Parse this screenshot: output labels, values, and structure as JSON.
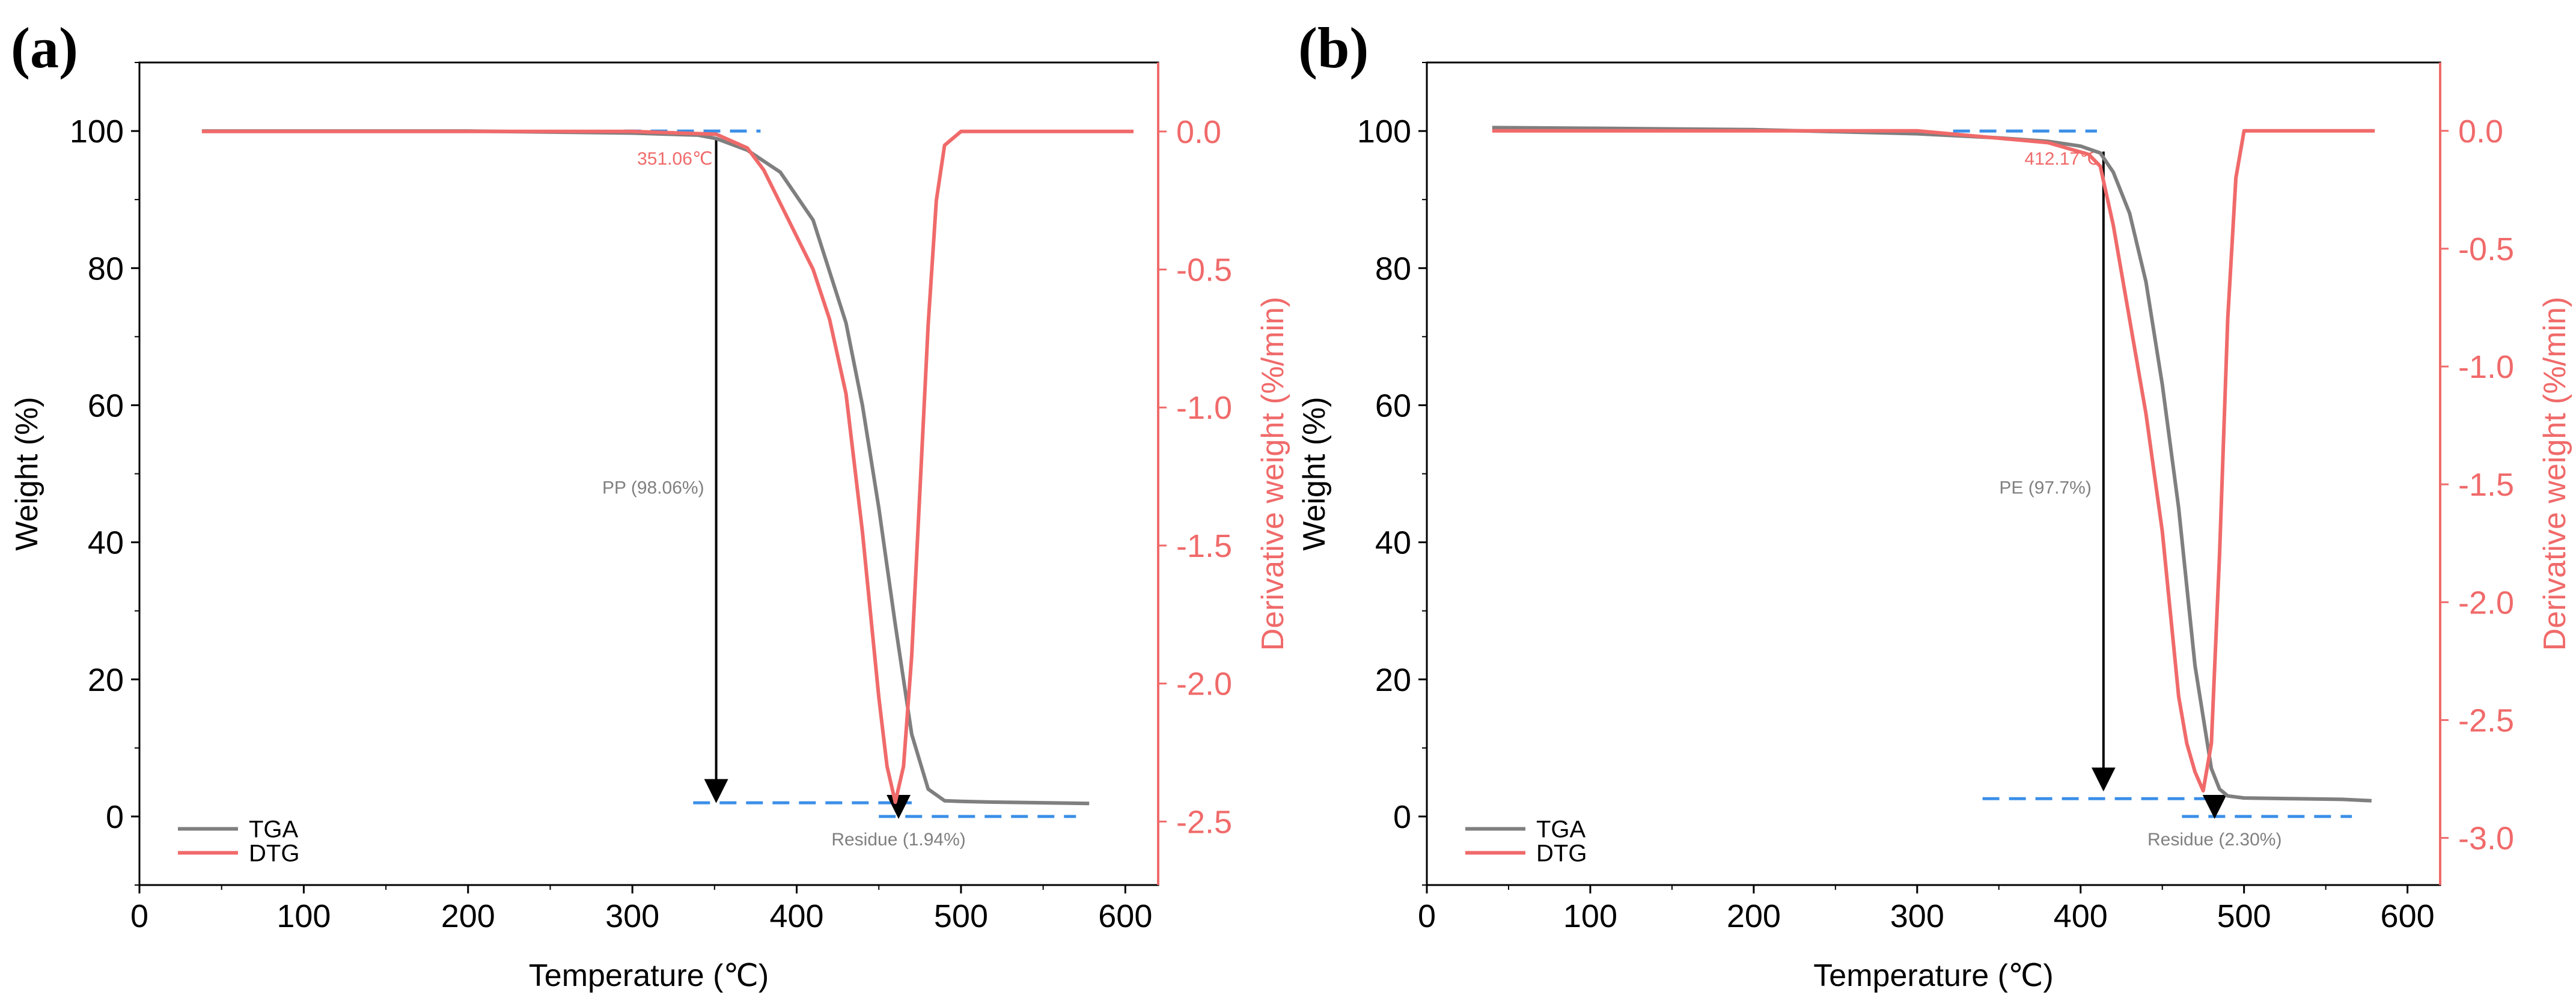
{
  "colors": {
    "tga": "#7f7f7f",
    "dtg": "#f06a6a",
    "dashed": "#3b8fe8",
    "arrow": "#000000",
    "axis": "#000000"
  },
  "chart_data": [
    {
      "panel_label": "(a)",
      "type": "line",
      "xlabel": "Temperature (℃)",
      "ylabel": "Weight (%)",
      "y2label": "Derivative weight (%/min)",
      "xlim": [
        0,
        620
      ],
      "ylim": [
        -10,
        110
      ],
      "y2lim": [
        -2.73,
        0.25
      ],
      "xticks": [
        "0",
        "100",
        "200",
        "300",
        "400",
        "500",
        "600"
      ],
      "xtick_values": [
        0,
        100,
        200,
        300,
        400,
        500,
        600
      ],
      "yticks": [
        "0",
        "20",
        "40",
        "60",
        "80",
        "100"
      ],
      "ytick_values": [
        0,
        20,
        40,
        60,
        80,
        100
      ],
      "y2ticks": [
        "0.0",
        "-0.5",
        "-1.0",
        "-1.5",
        "-2.0",
        "-2.5"
      ],
      "y2tick_values": [
        0,
        -0.5,
        -1.0,
        -1.5,
        -2.0,
        -2.5
      ],
      "legend": [
        "TGA",
        "DTG"
      ],
      "legend_position": "bottom-left",
      "series": [
        {
          "name": "TGA",
          "axis": "left",
          "x": [
            38,
            100,
            200,
            300,
            340,
            351,
            370,
            390,
            410,
            430,
            440,
            450,
            460,
            470,
            480,
            490,
            500,
            520,
            550,
            578
          ],
          "values": [
            100,
            100,
            100,
            99.7,
            99.4,
            98.9,
            97.2,
            94,
            87,
            72,
            60,
            45,
            28,
            12,
            4,
            2.3,
            2.2,
            2.1,
            2.0,
            1.9
          ]
        },
        {
          "name": "DTG",
          "axis": "right",
          "x": [
            38,
            100,
            200,
            300,
            351,
            370,
            380,
            390,
            400,
            410,
            420,
            430,
            440,
            450,
            455,
            460,
            465,
            470,
            475,
            480,
            485,
            490,
            500,
            550,
            605
          ],
          "values": [
            0,
            0,
            0,
            0,
            -0.01,
            -0.06,
            -0.14,
            -0.26,
            -0.38,
            -0.5,
            -0.68,
            -0.95,
            -1.45,
            -2.05,
            -2.3,
            -2.43,
            -2.3,
            -1.9,
            -1.3,
            -0.7,
            -0.25,
            -0.05,
            0,
            0,
            0
          ]
        }
      ],
      "annotations": {
        "onset_label": "351.06℃",
        "onset_temperature": 351.06,
        "loss_label": "PP (98.06%)",
        "residue_label": "Residue (1.94%)",
        "upper_dash_x": [
          295,
          378
        ],
        "upper_dash_y": 100,
        "lower_dash_x": [
          337,
          470
        ],
        "lower_dash_y": 2,
        "residue_dash_x": [
          450,
          570
        ],
        "residue_dash_y": 0,
        "arrow_x": 351,
        "arrow_from": 98.7,
        "arrow_to": 2.3,
        "residue_arrow_x": 462
      }
    },
    {
      "panel_label": "(b)",
      "type": "line",
      "xlabel": "Temperature (℃)",
      "ylabel": "Weight (%)",
      "y2label": "Derivative weight (%/min)",
      "xlim": [
        0,
        620
      ],
      "ylim": [
        -10,
        110
      ],
      "y2lim": [
        -3.2,
        0.29
      ],
      "xticks": [
        "0",
        "100",
        "200",
        "300",
        "400",
        "500",
        "600"
      ],
      "xtick_values": [
        0,
        100,
        200,
        300,
        400,
        500,
        600
      ],
      "yticks": [
        "0",
        "20",
        "40",
        "60",
        "80",
        "100"
      ],
      "ytick_values": [
        0,
        20,
        40,
        60,
        80,
        100
      ],
      "y2ticks": [
        "0.0",
        "-0.5",
        "-1.0",
        "-1.5",
        "-2.0",
        "-2.5",
        "-3.0"
      ],
      "y2tick_values": [
        0,
        -0.5,
        -1.0,
        -1.5,
        -2.0,
        -2.5,
        -3.0
      ],
      "legend": [
        "TGA",
        "DTG"
      ],
      "legend_position": "bottom-left",
      "series": [
        {
          "name": "TGA",
          "axis": "left",
          "x": [
            40,
            100,
            200,
            300,
            350,
            380,
            400,
            412,
            420,
            430,
            440,
            450,
            460,
            470,
            480,
            485,
            490,
            500,
            530,
            560,
            578
          ],
          "values": [
            100.5,
            100.4,
            100.2,
            99.6,
            99.0,
            98.5,
            97.8,
            96.8,
            94,
            88,
            78,
            63,
            45,
            22,
            7,
            4,
            3,
            2.7,
            2.6,
            2.5,
            2.3
          ]
        },
        {
          "name": "DTG",
          "axis": "right",
          "x": [
            40,
            100,
            200,
            300,
            380,
            405,
            412,
            420,
            430,
            440,
            450,
            460,
            465,
            470,
            475,
            480,
            485,
            490,
            495,
            500,
            520,
            560,
            580
          ],
          "values": [
            0,
            0,
            0,
            0,
            -0.05,
            -0.1,
            -0.15,
            -0.4,
            -0.8,
            -1.2,
            -1.7,
            -2.4,
            -2.6,
            -2.72,
            -2.8,
            -2.6,
            -1.8,
            -0.8,
            -0.2,
            0,
            0,
            0,
            0
          ]
        }
      ],
      "annotations": {
        "onset_label": "412.17℃",
        "onset_temperature": 412.17,
        "loss_label": "PE (97.7%)",
        "residue_label": "Residue (2.30%)",
        "upper_dash_x": [
          322,
          410
        ],
        "upper_dash_y": 100,
        "lower_dash_x": [
          340,
          485
        ],
        "lower_dash_y": 2.6,
        "residue_dash_x": [
          462,
          566
        ],
        "residue_dash_y": 0,
        "arrow_x": 414,
        "arrow_from": 97,
        "arrow_to": 4,
        "residue_arrow_x": 482
      }
    }
  ]
}
